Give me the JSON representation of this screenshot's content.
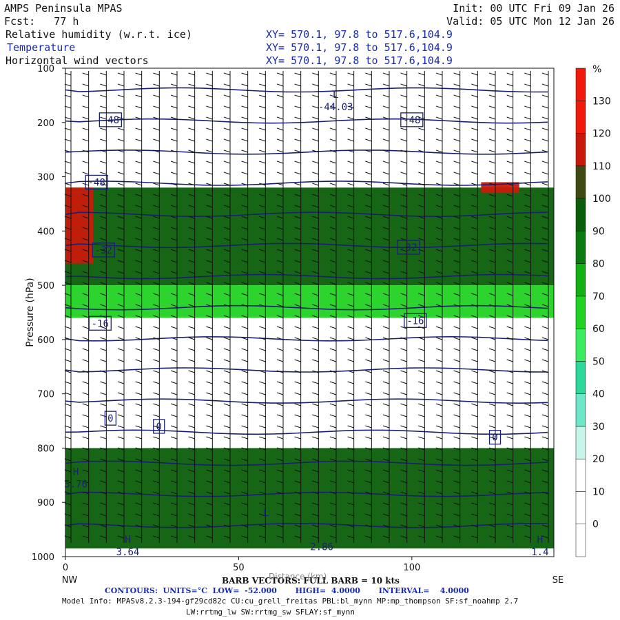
{
  "header": {
    "model": "AMPS Peninsula MPAS",
    "fcst": "Fcst:   77 h",
    "init": "Init: 00 UTC Fri 09 Jan 26",
    "valid": "Valid: 05 UTC Mon 12 Jan 26",
    "fields": [
      {
        "label": "Relative humidity (w.r.t. ice)",
        "xy": "XY= 570.1, 97.8 to 517.6,104.9"
      },
      {
        "label": "Temperature",
        "xy": "XY= 570.1, 97.8 to 517.6,104.9"
      },
      {
        "label": "Horizontal wind vectors",
        "xy": "XY= 570.1, 97.8 to 517.6,104.9"
      }
    ]
  },
  "chart_data": {
    "type": "heatmap",
    "title": "Relative humidity (w.r.t. ice), Temperature, Horizontal wind vectors",
    "ylabel": "Pressure (hPa)",
    "xlabel": "Distance (km)",
    "ylim": [
      1000,
      100
    ],
    "xlim": [
      0,
      141
    ],
    "y_ticks": [
      100,
      200,
      300,
      400,
      500,
      600,
      700,
      800,
      900,
      1000
    ],
    "x_ticks": [
      0,
      50,
      100
    ],
    "x_end_labels": {
      "left": "NW",
      "right": "SE"
    },
    "colorbar": {
      "unit": "%",
      "levels": [
        0,
        10,
        20,
        30,
        40,
        50,
        60,
        70,
        80,
        90,
        100,
        110,
        120,
        130
      ],
      "colors": [
        "#ffffff",
        "#ffffff",
        "#ffffff",
        "#c8f5ea",
        "#6ee6c8",
        "#2ed89a",
        "#3cec60",
        "#22d222",
        "#12b012",
        "#0b7a10",
        "#0a5e0a",
        "#3f4a12",
        "#c81a0a",
        "#f01a0a"
      ]
    },
    "rh_regions": [
      {
        "x": [
          0,
          141
        ],
        "p": [
          320,
          500
        ],
        "rh": 100
      },
      {
        "x": [
          0,
          141
        ],
        "p": [
          500,
          560
        ],
        "rh": 75
      },
      {
        "x": [
          0,
          8
        ],
        "p": [
          320,
          460
        ],
        "rh": 125
      },
      {
        "x": [
          120,
          131
        ],
        "p": [
          310,
          330
        ],
        "rh": 125
      },
      {
        "x": [
          0,
          141
        ],
        "p": [
          800,
          985
        ],
        "rh": 100
      }
    ],
    "temperature_contours": {
      "units": "°C",
      "low": -52.0,
      "high": 4.0,
      "interval": 4.0,
      "labels": [
        {
          "text": "-48",
          "x": 13,
          "p": 195
        },
        {
          "text": "-48",
          "x": 100,
          "p": 195
        },
        {
          "text": "-48",
          "x": 9,
          "p": 310
        },
        {
          "text": "-32",
          "x": 11,
          "p": 435
        },
        {
          "text": "-32",
          "x": 99,
          "p": 430
        },
        {
          "text": "-16",
          "x": 10,
          "p": 570
        },
        {
          "text": "-16",
          "x": 101,
          "p": 565
        },
        {
          "text": "0",
          "x": 13,
          "p": 745
        },
        {
          "text": "0",
          "x": 27,
          "p": 760
        },
        {
          "text": "0",
          "x": 124,
          "p": 780
        }
      ],
      "extrema": [
        {
          "mark": "L",
          "value": "-44.03",
          "x": 78,
          "p": 165
        },
        {
          "mark": "H",
          "value": "5.76",
          "x": 3,
          "p": 860
        },
        {
          "mark": "L",
          "value": "",
          "x": 58,
          "p": 935
        },
        {
          "mark": "H",
          "value": "3.64",
          "x": 18,
          "p": 985
        },
        {
          "mark": "",
          "value": "2.86",
          "x": 74,
          "p": 975
        },
        {
          "mark": "H",
          "value": "1.4",
          "x": 137,
          "p": 985
        }
      ]
    },
    "barbs": {
      "n_columns": 28,
      "note": "BARB VECTORS: FULL BARB = 10 kts"
    }
  },
  "footer": {
    "barb_note": "BARB VECTORS: FULL BARB = 10 kts",
    "xlabel_overlay": "Distance (km)",
    "contours": "CONTOURS:  UNITS=°C  LOW=  -52.000       HIGH=  4.0000       INTERVAL=    4.0000",
    "model_info": "Model Info: MPASv8.2.3-194-gf29cd82c CU:cu_grell_freitas PBL:bl_mynn MP:mp_thompson SF:sf_noahmp 2.7",
    "model_info2": "LW:rrtmg_lw SW:rrtmg_sw SFLAY:sf_mynn"
  }
}
